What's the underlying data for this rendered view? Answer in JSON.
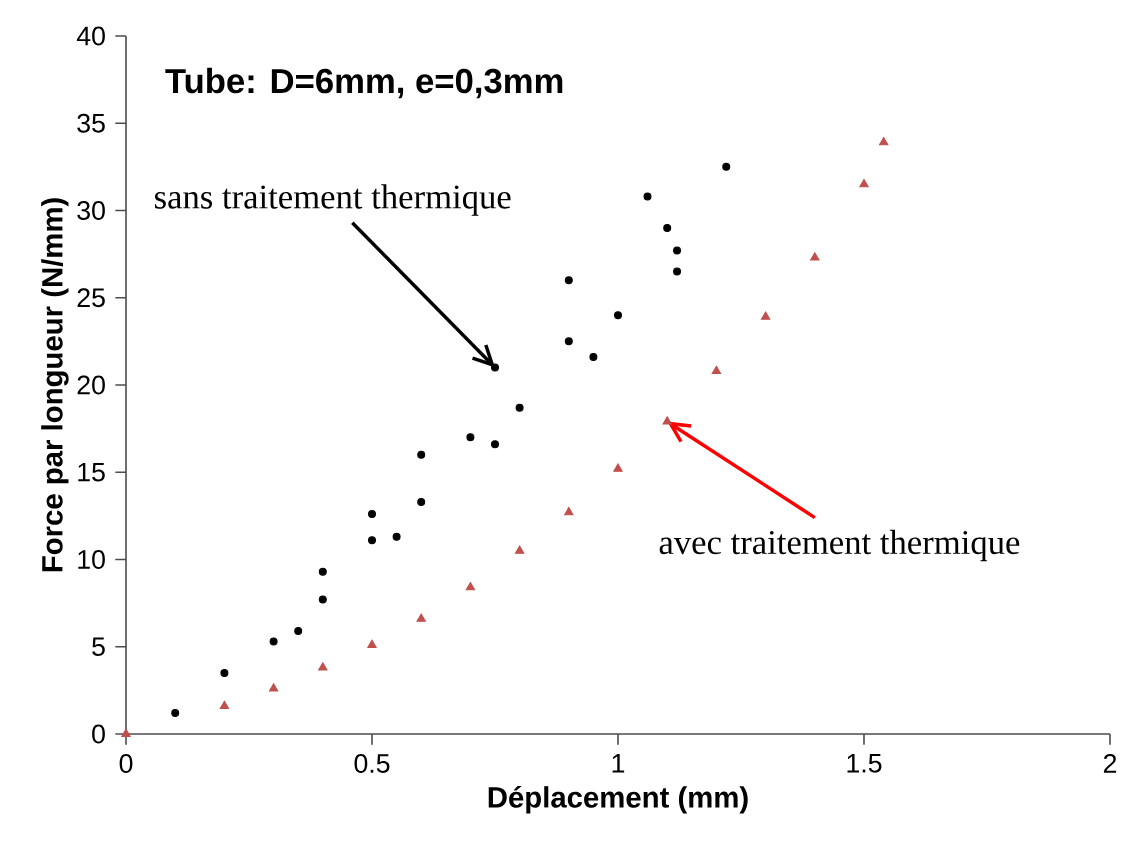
{
  "chart_data": {
    "type": "scatter",
    "title": "Tube: D=6mm, e=0,3mm",
    "xlabel": "Déplacement (mm)",
    "ylabel": "Force par longueur (N/mm)",
    "xlim": [
      0,
      2
    ],
    "ylim": [
      0,
      40
    ],
    "xticks": [
      0,
      0.5,
      1,
      1.5,
      2
    ],
    "yticks": [
      0,
      5,
      10,
      15,
      20,
      25,
      30,
      35,
      40
    ],
    "grid": false,
    "annotations": [
      {
        "text": "sans traitement thermique",
        "x": 0.75,
        "y": 21
      },
      {
        "text": "avec traitement thermique",
        "x": 1.1,
        "y": 17.9
      }
    ],
    "series": [
      {
        "color": "#000000",
        "marker": "circle",
        "x": [
          0.1,
          0.2,
          0.4,
          0.5,
          0.6,
          0.75,
          0.9,
          1.06
        ],
        "values": [
          1.2,
          3.5,
          9.3,
          12.6,
          16,
          21,
          26,
          30.8
        ]
      },
      {
        "color": "#000000",
        "marker": "circle",
        "x": [
          0.3,
          0.5,
          0.7,
          0.9,
          1.1,
          1.22
        ],
        "values": [
          5.3,
          11.1,
          17,
          22.5,
          29,
          32.5
        ]
      },
      {
        "color": "#000000",
        "marker": "circle",
        "x": [
          0.4,
          0.6,
          0.8,
          1.0,
          1.12
        ],
        "values": [
          7.7,
          13.3,
          18.7,
          24,
          27.7
        ]
      },
      {
        "color": "#000000",
        "marker": "circle",
        "x": [
          0.35,
          0.55,
          0.75,
          0.95,
          1.12
        ],
        "values": [
          5.9,
          11.3,
          16.6,
          21.6,
          26.5
        ]
      },
      {
        "color": "#c0504d",
        "marker": "triangle",
        "x": [
          0,
          0.2,
          0.3,
          0.4,
          0.5,
          0.6,
          0.7,
          0.8,
          0.9,
          1.0,
          1.1,
          1.2,
          1.3,
          1.4,
          1.5,
          1.54
        ],
        "values": [
          0,
          1.6,
          2.6,
          3.8,
          5.1,
          6.6,
          8.4,
          10.5,
          12.7,
          15.2,
          17.9,
          20.8,
          23.9,
          27.3,
          31.5,
          33.9
        ]
      }
    ]
  }
}
